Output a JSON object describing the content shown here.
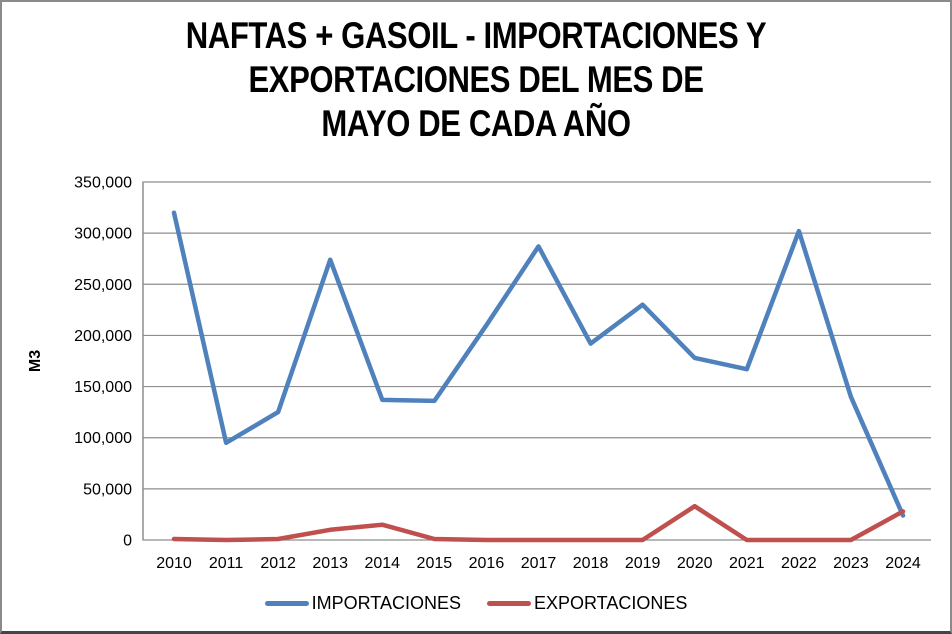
{
  "window": {
    "background": "#ffffff",
    "border_color": "#8a8a8a",
    "border_bottom_color": "#454545"
  },
  "chart_data": {
    "type": "line",
    "title": "NAFTAS + GASOIL - IMPORTACIONES Y EXPORTACIONES DEL MES DE MAYO DE CADA AÑO",
    "title_lines": [
      "NAFTAS + GASOIL - IMPORTACIONES Y",
      "EXPORTACIONES DEL MES DE",
      "MAYO DE CADA AÑO"
    ],
    "xlabel": "",
    "ylabel": "M3",
    "categories": [
      "2010",
      "2011",
      "2012",
      "2013",
      "2014",
      "2015",
      "2016",
      "2017",
      "2018",
      "2019",
      "2020",
      "2021",
      "2022",
      "2023",
      "2024"
    ],
    "series": [
      {
        "name": "IMPORTACIONES",
        "color": "#4F81BD",
        "values": [
          320000,
          95000,
          125000,
          274000,
          137000,
          136000,
          210000,
          287000,
          192000,
          230000,
          178000,
          167000,
          302000,
          140000,
          24000
        ]
      },
      {
        "name": "EXPORTACIONES",
        "color": "#C0504D",
        "values": [
          1000,
          0,
          1000,
          10000,
          15000,
          1000,
          0,
          0,
          0,
          0,
          33000,
          0,
          0,
          0,
          28000
        ]
      }
    ],
    "ylim": [
      0,
      350000
    ],
    "y_tick_step": 50000,
    "y_tick_labels": [
      "0",
      "50,000",
      "100,000",
      "150,000",
      "200,000",
      "250,000",
      "300,000",
      "350,000"
    ],
    "grid": true,
    "gridline_color": "#8e8e8e",
    "tick_label_color": "#000000",
    "legend_position": "bottom"
  }
}
